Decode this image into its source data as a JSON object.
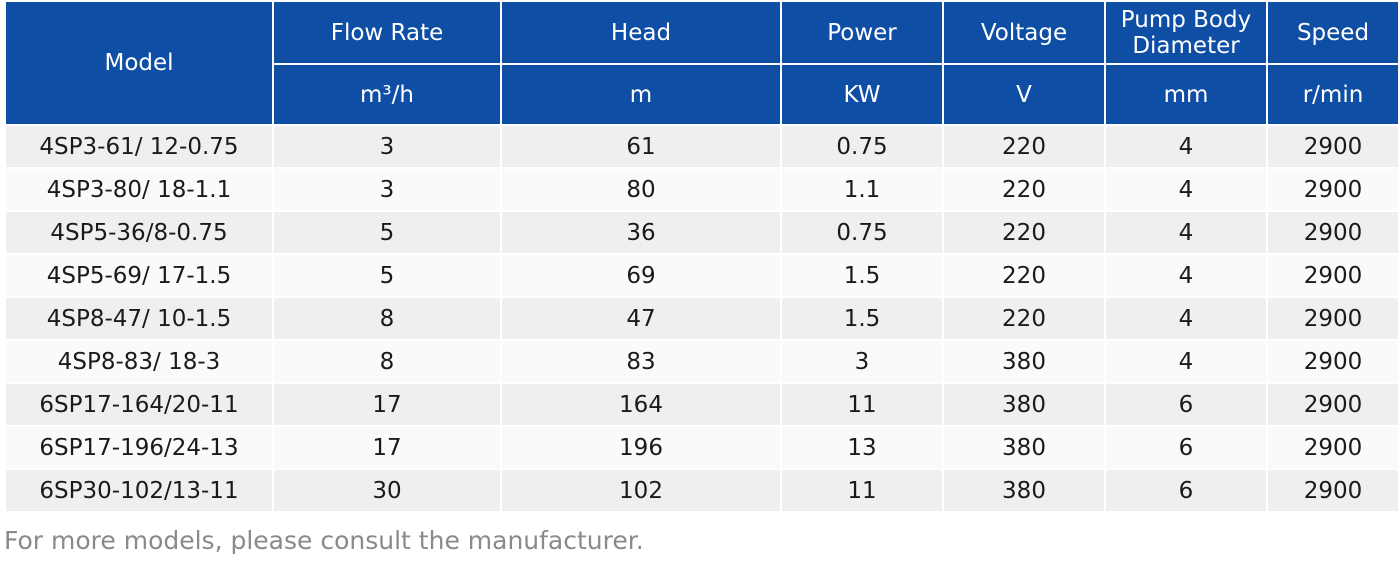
{
  "table": {
    "headers": [
      {
        "label": "Model"
      },
      {
        "label": "Flow Rate",
        "unit": "m³/h"
      },
      {
        "label": "Head",
        "unit": "m"
      },
      {
        "label": "Power",
        "unit": "KW"
      },
      {
        "label": "Voltage",
        "unit": "V"
      },
      {
        "label": "Pump Body Diameter",
        "unit": "mm"
      },
      {
        "label": "Speed",
        "unit": "r/min"
      }
    ],
    "rows": [
      [
        "4SP3-61/ 12-0.75",
        "3",
        "61",
        "0.75",
        "220",
        "4",
        "2900"
      ],
      [
        "4SP3-80/ 18-1.1",
        "3",
        "80",
        "1.1",
        "220",
        "4",
        "2900"
      ],
      [
        "4SP5-36/8-0.75",
        "5",
        "36",
        "0.75",
        "220",
        "4",
        "2900"
      ],
      [
        "4SP5-69/ 17-1.5",
        "5",
        "69",
        "1.5",
        "220",
        "4",
        "2900"
      ],
      [
        "4SP8-47/ 10-1.5",
        "8",
        "47",
        "1.5",
        "220",
        "4",
        "2900"
      ],
      [
        "4SP8-83/ 18-3",
        "8",
        "83",
        "3",
        "380",
        "4",
        "2900"
      ],
      [
        "6SP17-164/20-11",
        "17",
        "164",
        "11",
        "380",
        "6",
        "2900"
      ],
      [
        "6SP17-196/24-13",
        "17",
        "196",
        "13",
        "380",
        "6",
        "2900"
      ],
      [
        "6SP30-102/13-11",
        "30",
        "102",
        "11",
        "380",
        "6",
        "2900"
      ]
    ]
  },
  "footnote": "For more models, please consult the manufacturer."
}
